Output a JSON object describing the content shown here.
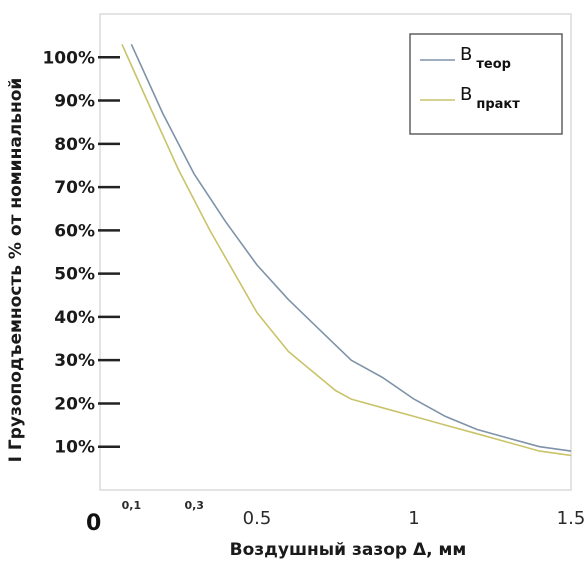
{
  "chart_data": {
    "type": "line",
    "xlabel": "Воздушный зазор  Δ, мм",
    "ylabel": "I Грузоподъемность % от номинальной",
    "xlim": [
      0,
      1.5
    ],
    "ylim": [
      0,
      110
    ],
    "x_ticks": [
      {
        "value": 0.1,
        "label": "0,1",
        "style": "small"
      },
      {
        "value": 0.3,
        "label": "0,3",
        "style": "small"
      },
      {
        "value": 0.5,
        "label": "0.5",
        "style": "normal"
      },
      {
        "value": 1.0,
        "label": "1",
        "style": "normal"
      },
      {
        "value": 1.5,
        "label": "1.5",
        "style": "normal"
      }
    ],
    "origin_label": "0",
    "y_ticks": [
      {
        "value": 10,
        "label": "10%"
      },
      {
        "value": 20,
        "label": "20%"
      },
      {
        "value": 30,
        "label": "30%"
      },
      {
        "value": 40,
        "label": "40%"
      },
      {
        "value": 50,
        "label": "50%"
      },
      {
        "value": 60,
        "label": "60%"
      },
      {
        "value": 70,
        "label": "70%"
      },
      {
        "value": 80,
        "label": "80%"
      },
      {
        "value": 90,
        "label": "90%"
      },
      {
        "value": 100,
        "label": "100%"
      }
    ],
    "legend_position": "top-right",
    "series": [
      {
        "name": "B",
        "subscript": "теор",
        "color": "#7f93a8",
        "x": [
          0.1,
          0.2,
          0.3,
          0.4,
          0.5,
          0.6,
          0.7,
          0.8,
          0.9,
          1.0,
          1.1,
          1.2,
          1.3,
          1.4,
          1.5
        ],
        "y": [
          103,
          87,
          73,
          62,
          52,
          44,
          37,
          30,
          26,
          21,
          17,
          14,
          12,
          10,
          9
        ]
      },
      {
        "name": "B",
        "subscript": "практ",
        "color": "#c9c46a",
        "x": [
          0.07,
          0.15,
          0.25,
          0.35,
          0.5,
          0.6,
          0.75,
          0.8,
          0.9,
          1.0,
          1.1,
          1.2,
          1.3,
          1.4,
          1.5
        ],
        "y": [
          103,
          90,
          74,
          60,
          41,
          32,
          23,
          21,
          19,
          17,
          15,
          13,
          11,
          9,
          8
        ]
      }
    ]
  }
}
